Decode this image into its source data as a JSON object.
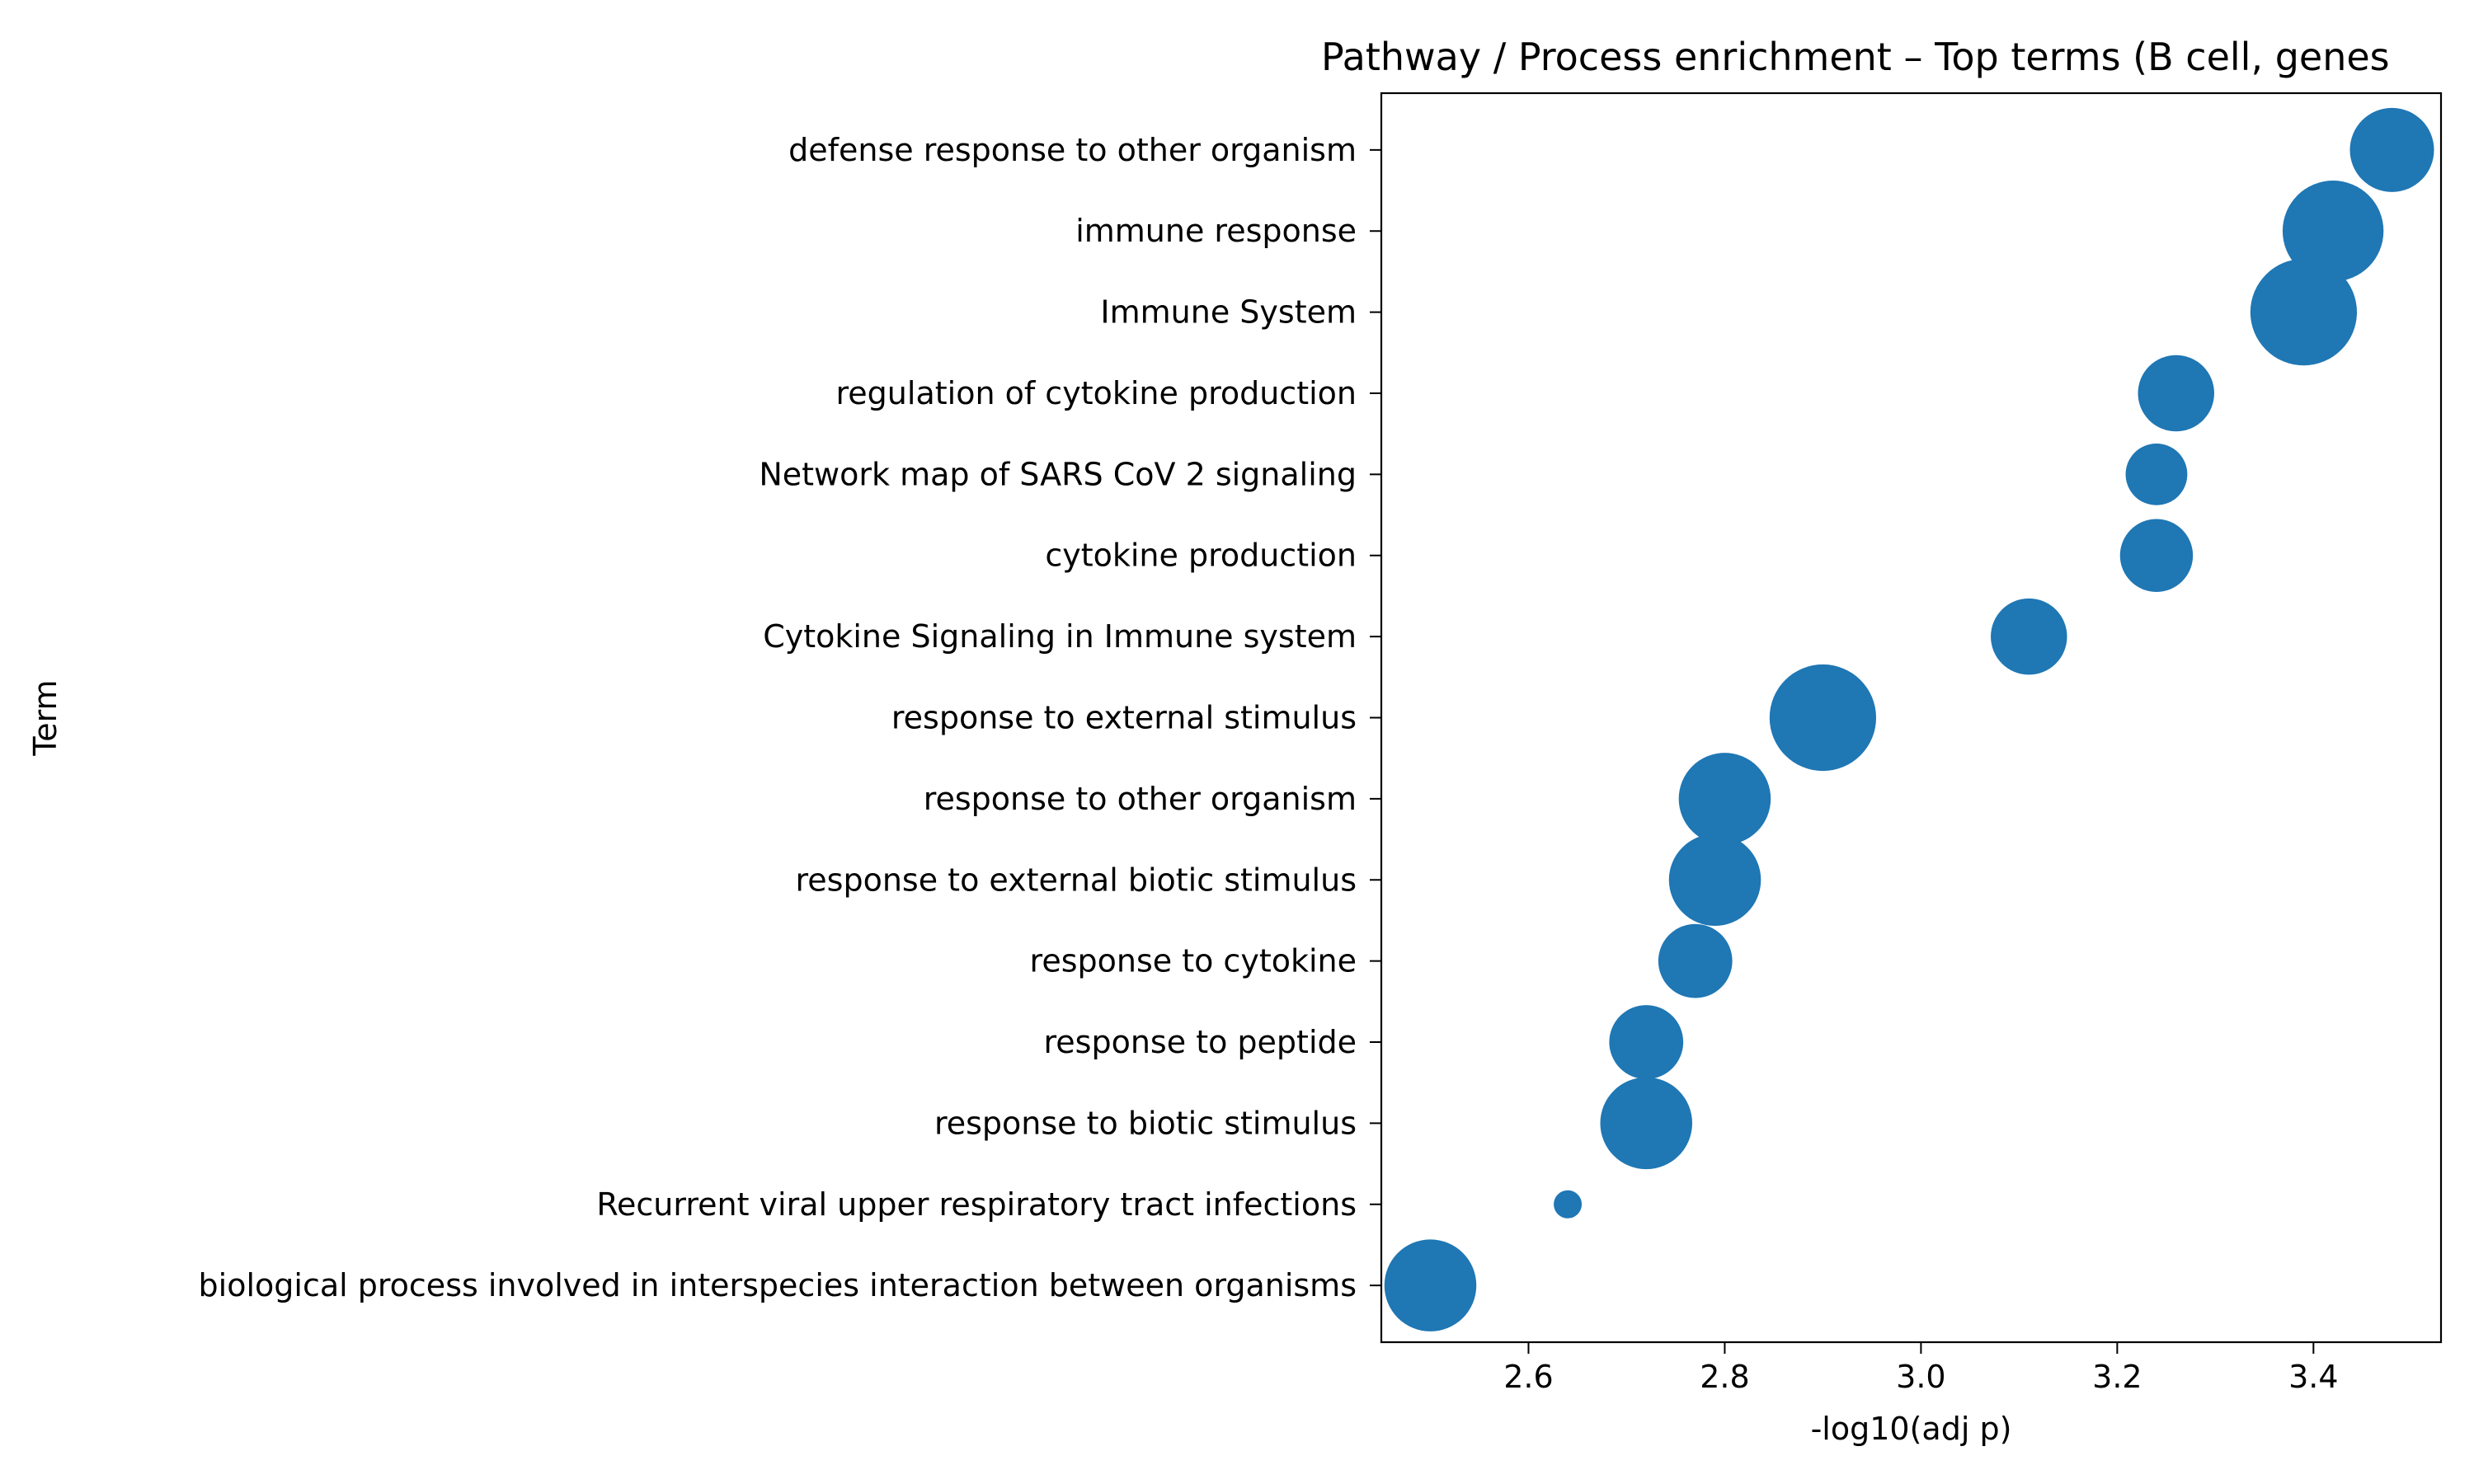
{
  "chart_data": {
    "type": "scatter",
    "title": "Pathway / Process enrichment – Top terms (B cell, genes",
    "xlabel": "-log10(adj p)",
    "ylabel": "Term",
    "xlim": [
      2.45,
      3.53
    ],
    "xticks": [
      "2.6",
      "2.8",
      "3.0",
      "3.2",
      "3.4"
    ],
    "grid": false,
    "legend": "none",
    "marker_color": "#1f77b4",
    "size_encoding": "relative",
    "points": [
      {
        "term": "defense response to other organism",
        "x": 3.48,
        "size": 0.75
      },
      {
        "term": "immune response",
        "x": 3.42,
        "size": 0.9
      },
      {
        "term": "Immune System",
        "x": 3.39,
        "size": 0.95
      },
      {
        "term": "regulation of cytokine production",
        "x": 3.26,
        "size": 0.68
      },
      {
        "term": "Network map of SARS CoV 2 signaling",
        "x": 3.24,
        "size": 0.55
      },
      {
        "term": "cytokine production",
        "x": 3.24,
        "size": 0.65
      },
      {
        "term": "Cytokine Signaling in Immune system",
        "x": 3.11,
        "size": 0.68
      },
      {
        "term": "response to external stimulus",
        "x": 2.9,
        "size": 0.95
      },
      {
        "term": "response to other organism",
        "x": 2.8,
        "size": 0.82
      },
      {
        "term": "response to external biotic stimulus",
        "x": 2.79,
        "size": 0.82
      },
      {
        "term": "response to cytokine",
        "x": 2.77,
        "size": 0.66
      },
      {
        "term": "response to peptide",
        "x": 2.72,
        "size": 0.66
      },
      {
        "term": "response to biotic stimulus",
        "x": 2.72,
        "size": 0.82
      },
      {
        "term": "Recurrent viral upper respiratory tract infections",
        "x": 2.64,
        "size": 0.25
      },
      {
        "term": "biological process involved in interspecies interaction between organisms",
        "x": 2.5,
        "size": 0.82
      }
    ]
  }
}
